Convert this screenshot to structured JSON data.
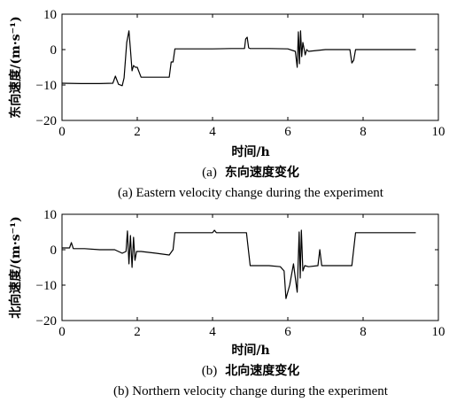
{
  "chart_data": [
    {
      "type": "line",
      "xlabel": "时间/h",
      "ylabel": "东向速度/(m·s⁻¹)",
      "caption_prefix": "(a)",
      "caption_cn": "东向速度变化",
      "caption_en": "(a) Eastern velocity change during the experiment",
      "xlim": [
        0,
        10
      ],
      "ylim": [
        -20,
        10
      ],
      "xticks": [
        "0",
        "2",
        "4",
        "6",
        "8",
        "10"
      ],
      "yticks": [
        "10",
        "0",
        "−10",
        "−20"
      ],
      "xtick_values": [
        0,
        2,
        4,
        6,
        8,
        10
      ],
      "ytick_values": [
        10,
        0,
        -10,
        -20
      ],
      "grid": false,
      "series": [
        {
          "x": [
            0,
            0.5,
            1.0,
            1.35,
            1.42,
            1.5,
            1.6,
            1.65,
            1.72,
            1.78,
            1.82,
            1.86,
            1.9,
            1.95,
            2.0,
            2.1,
            2.5,
            2.85,
            2.9,
            2.95,
            3.0,
            4.0,
            4.5,
            4.85,
            4.88,
            4.92,
            4.96,
            5.0,
            5.5,
            6.0,
            6.2,
            6.25,
            6.28,
            6.31,
            6.34,
            6.37,
            6.4,
            6.43,
            6.46,
            6.5,
            6.55,
            7.0,
            7.5,
            7.65,
            7.7,
            7.75,
            7.8,
            8.0,
            8.5,
            9.0,
            9.4
          ],
          "y": [
            -9.5,
            -9.6,
            -9.6,
            -9.5,
            -7.5,
            -9.8,
            -10.2,
            -8,
            2,
            5.3,
            0,
            -6,
            -4.5,
            -5,
            -5,
            -7.8,
            -7.8,
            -7.8,
            -3.5,
            -3.5,
            0.2,
            0.2,
            0.3,
            0.3,
            3,
            3.5,
            0.5,
            0.3,
            0.3,
            0.2,
            -0.5,
            -5,
            5,
            -4,
            5.3,
            -2,
            2,
            0.3,
            -1.5,
            0,
            -0.5,
            0,
            0,
            0,
            -3.8,
            -3,
            0,
            0,
            0,
            0,
            0
          ]
        }
      ]
    },
    {
      "type": "line",
      "xlabel": "时间/h",
      "ylabel": "北向速度/(m·s⁻¹)",
      "caption_prefix": "(b)",
      "caption_cn": "北向速度变化",
      "caption_en": "(b) Northern velocity change during the experiment",
      "xlim": [
        0,
        10
      ],
      "ylim": [
        -20,
        10
      ],
      "xticks": [
        "0",
        "2",
        "4",
        "6",
        "8",
        "10"
      ],
      "yticks": [
        "10",
        "0",
        "−10",
        "−20"
      ],
      "xtick_values": [
        0,
        2,
        4,
        6,
        8,
        10
      ],
      "ytick_values": [
        10,
        0,
        -10,
        -20
      ],
      "grid": false,
      "series": [
        {
          "x": [
            0,
            0.2,
            0.25,
            0.3,
            0.6,
            1.0,
            1.4,
            1.6,
            1.7,
            1.74,
            1.78,
            1.82,
            1.86,
            1.9,
            1.94,
            1.98,
            2.1,
            2.5,
            2.85,
            2.95,
            3.0,
            4.0,
            4.05,
            4.1,
            4.5,
            4.9,
            5.0,
            5.5,
            5.8,
            5.9,
            5.95,
            6.05,
            6.15,
            6.25,
            6.3,
            6.33,
            6.36,
            6.4,
            6.45,
            6.55,
            6.8,
            6.85,
            6.9,
            7.0,
            7.5,
            7.7,
            7.8,
            8.0,
            8.5,
            9.0,
            9.4
          ],
          "y": [
            0.5,
            0.5,
            2,
            0.3,
            0.3,
            0,
            0,
            -1,
            -0.5,
            5.3,
            -4,
            4,
            -5,
            3.5,
            -3,
            -0.5,
            -0.5,
            -1,
            -1.5,
            0,
            4.8,
            4.8,
            5.5,
            4.8,
            4.8,
            4.8,
            -4.5,
            -4.5,
            -4.8,
            -6,
            -13.8,
            -10,
            -4,
            -12,
            5,
            -8,
            5.5,
            -6,
            -4.5,
            -4.8,
            -4.5,
            0,
            -4.5,
            -4.5,
            -4.5,
            -4.5,
            4.8,
            4.8,
            4.8,
            4.8,
            4.8
          ]
        }
      ]
    }
  ]
}
